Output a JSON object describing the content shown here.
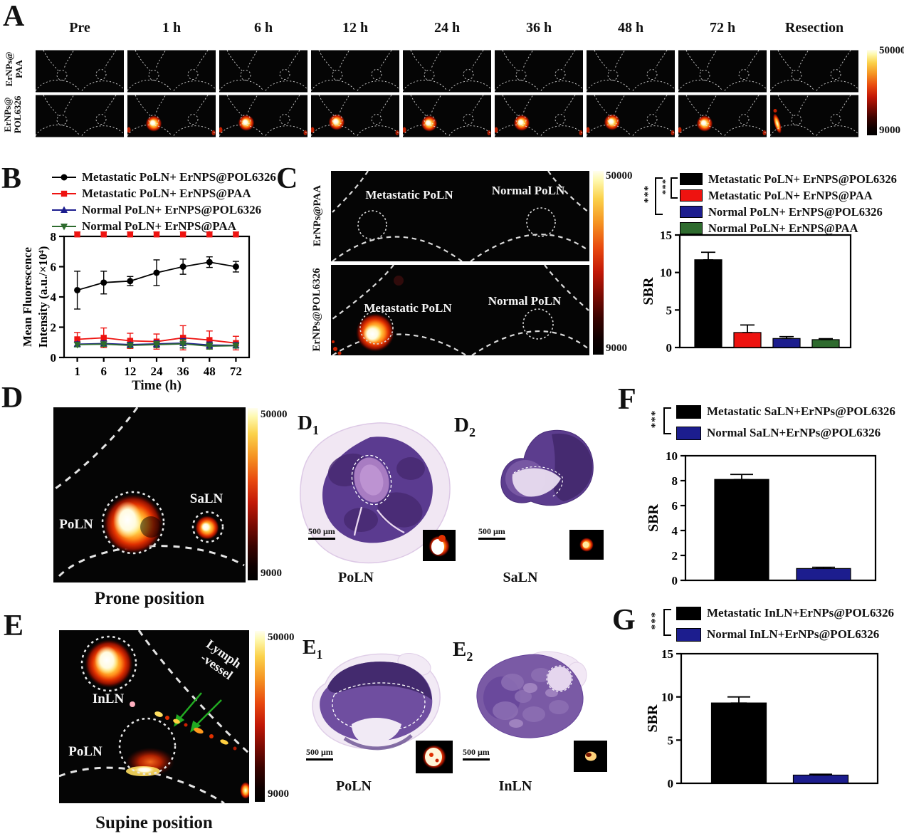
{
  "figure": {
    "panelA": {
      "label": "A",
      "timepoints": [
        "Pre",
        "1 h",
        "6 h",
        "12 h",
        "24 h",
        "36 h",
        "48 h",
        "72 h",
        "Resection"
      ],
      "rows": [
        {
          "label_line1": "ErNPs@",
          "label_line2": "PAA",
          "hotspots": [
            "none",
            "none",
            "none",
            "none",
            "none",
            "none",
            "none",
            "none",
            "none"
          ]
        },
        {
          "label_line1": "ErNPs@",
          "label_line2": "POL6326",
          "hotspots": [
            "none",
            "blob",
            "blob",
            "blob",
            "blob",
            "blob",
            "blob",
            "blob",
            "streak"
          ]
        }
      ],
      "colorbar": {
        "max": "50000",
        "min": "9000"
      }
    },
    "panelB": {
      "label": "B",
      "xlabel": "Time (h)"
    },
    "panelC": {
      "label": "C",
      "row_labels": [
        "ErNPs@PAA",
        "ErNPs@POL6326"
      ],
      "image_labels": {
        "left": "Metastatic PoLN",
        "right": "Normal PoLN"
      },
      "colorbar": {
        "max": "50000",
        "min": "9000"
      },
      "significance": [
        "***",
        "***"
      ]
    },
    "panelD": {
      "label": "D",
      "image_labels": {
        "poln": "PoLN",
        "saln": "SaLN"
      },
      "caption": "Prone position",
      "colorbar": {
        "max": "50000",
        "min": "9000"
      },
      "sub1": {
        "label_main": "D",
        "label_sub": "1",
        "scalebar": "500 μm",
        "caption": "PoLN"
      },
      "sub2": {
        "label_main": "D",
        "label_sub": "2",
        "scalebar": "500 μm",
        "caption": "SaLN"
      }
    },
    "panelE": {
      "label": "E",
      "image_labels": {
        "inln": "InLN",
        "poln": "PoLN",
        "vessel_line1": "Lymph",
        "vessel_line2": "-vessel"
      },
      "caption": "Supine position",
      "colorbar": {
        "max": "50000",
        "min": "9000"
      },
      "sub1": {
        "label_main": "E",
        "label_sub": "1",
        "scalebar": "500 μm",
        "caption": "PoLN"
      },
      "sub2": {
        "label_main": "E",
        "label_sub": "2",
        "scalebar": "500 μm",
        "caption": "InLN"
      }
    },
    "panelF": {
      "label": "F",
      "significance": "***"
    },
    "panelG": {
      "label": "G",
      "significance": "***"
    }
  },
  "chart_data": [
    {
      "id": "B",
      "type": "line",
      "xlabel": "Time (h)",
      "ylabel_lines": [
        "Mean Fluorescence",
        "Intensity (a.u./×10⁴)"
      ],
      "x_ticklabels": [
        "1",
        "6",
        "12",
        "24",
        "36",
        "48",
        "72"
      ],
      "ylim": [
        0,
        8
      ],
      "yticks": [
        0,
        2,
        4,
        6,
        8
      ],
      "grid": false,
      "legend_position": "top",
      "series": [
        {
          "name": "Metastatic PoLN+ ErNPS@POL6326",
          "color": "#000000",
          "marker": "circle",
          "values": [
            4.45,
            4.95,
            5.05,
            5.6,
            6.0,
            6.3,
            6.0
          ],
          "errors": [
            1.25,
            0.75,
            0.3,
            0.85,
            0.5,
            0.35,
            0.35
          ]
        },
        {
          "name": "Metastatic PoLN+ ErNPS@PAA",
          "color": "#ee1310",
          "marker": "square",
          "values": [
            1.2,
            1.3,
            1.1,
            1.05,
            1.3,
            1.15,
            0.95
          ],
          "errors": [
            0.45,
            0.65,
            0.5,
            0.5,
            0.8,
            0.6,
            0.45
          ]
        },
        {
          "name": "Normal PoLN+ ErNPS@POL6326",
          "color": "#1c1d8e",
          "marker": "triangle-up",
          "values": [
            0.88,
            0.92,
            0.85,
            0.9,
            0.95,
            0.82,
            0.8
          ],
          "errors": [
            0.15,
            0.18,
            0.15,
            0.2,
            0.3,
            0.2,
            0.18
          ]
        },
        {
          "name": "Normal PoLN+ ErNPS@PAA",
          "color": "#2e6b2e",
          "marker": "triangle-down",
          "values": [
            0.85,
            0.88,
            0.8,
            0.85,
            0.9,
            0.75,
            0.78
          ],
          "errors": [
            0.15,
            0.15,
            0.15,
            0.2,
            0.28,
            0.2,
            0.15
          ]
        }
      ]
    },
    {
      "id": "C",
      "type": "bar",
      "ylabel": "SBR",
      "ylim": [
        0,
        15
      ],
      "yticks": [
        0,
        5,
        10,
        15
      ],
      "categories": [
        "Metastatic PoLN+ ErNPS@POL6326",
        "Metastatic PoLN+ ErNPS@PAA",
        "Normal PoLN+ ErNPS@POL6326",
        "Normal PoLN+ ErNPS@PAA"
      ],
      "values": [
        11.7,
        2.0,
        1.2,
        1.05
      ],
      "errors": [
        1.0,
        1.0,
        0.25,
        0.12
      ],
      "colors": [
        "#000000",
        "#ee1310",
        "#1c1d8e",
        "#2e6b2e"
      ],
      "significance": [
        "***",
        "***"
      ]
    },
    {
      "id": "F",
      "type": "bar",
      "ylabel": "SBR",
      "ylim": [
        0,
        10
      ],
      "yticks": [
        0,
        2,
        4,
        6,
        8,
        10
      ],
      "categories": [
        "Metastatic SaLN+ErNPs@POL6326",
        "Normal SaLN+ErNPs@POL6326"
      ],
      "values": [
        8.1,
        0.95
      ],
      "errors": [
        0.4,
        0.1
      ],
      "colors": [
        "#000000",
        "#1c1d8e"
      ],
      "significance": [
        "***"
      ]
    },
    {
      "id": "G",
      "type": "bar",
      "ylabel": "SBR",
      "ylim": [
        0,
        15
      ],
      "yticks": [
        0,
        5,
        10,
        15
      ],
      "categories": [
        "Metastatic InLN+ErNPs@POL6326",
        "Normal InLN+ErNPs@POL6326"
      ],
      "values": [
        9.3,
        0.95
      ],
      "errors": [
        0.7,
        0.1
      ],
      "colors": [
        "#000000",
        "#1c1d8e"
      ],
      "significance": [
        "***"
      ]
    }
  ],
  "colors": {
    "hot_top": "#fffbc8",
    "hot_mid": "#ff8c1a",
    "hot_red": "#e02800",
    "series_red": "#ee1310",
    "series_navy": "#1c1d8e",
    "series_green": "#2e6b2e",
    "histology_dark": "#46266e",
    "histology_mid": "#6b4a9b",
    "histology_pale": "#ead9ee"
  }
}
